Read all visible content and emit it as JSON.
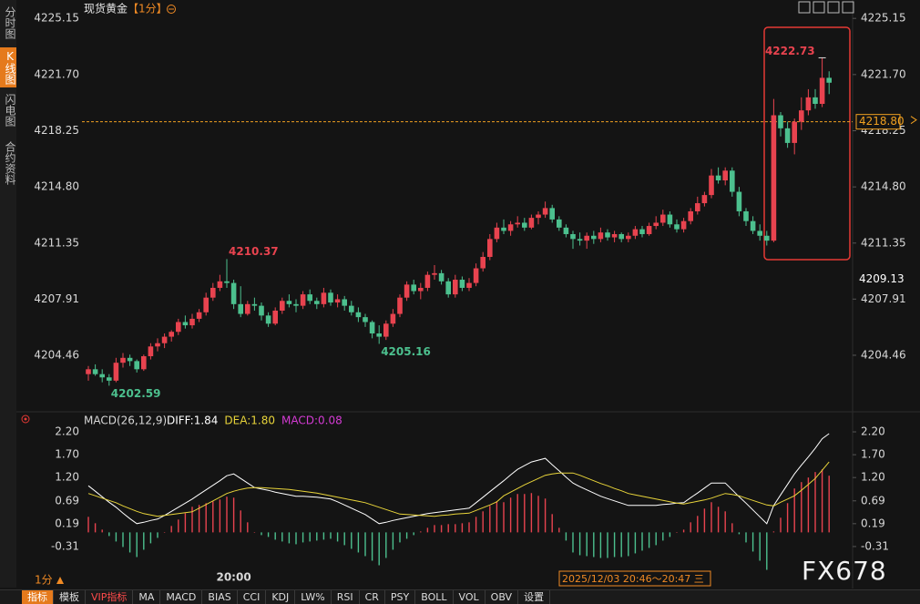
{
  "sidebar": {
    "tabs": [
      "分时图",
      "K线图",
      "闪电图",
      "合约资料"
    ]
  },
  "header": {
    "title": "现货黄金",
    "interval": "【1分】"
  },
  "chart_data": [
    {
      "type": "candlestick",
      "colors": {
        "up": "#e8434f",
        "down": "#4cc08e"
      },
      "ylim": [
        4201.1,
        4226.0
      ],
      "yticks": [
        4225.15,
        {
          "value": 4221.7,
          "label": "4221.70"
        },
        4218.25,
        {
          "value": 4214.8,
          "label": "4214.80"
        },
        4211.35,
        4207.91,
        4204.46
      ],
      "price_line": {
        "value": 4218.8,
        "label": "4218.80",
        "color": "#f0a020"
      },
      "cursor_price": 4209.13,
      "categories": [
        null,
        null,
        null,
        null,
        null,
        null,
        null,
        null,
        null,
        null,
        null,
        null,
        null,
        null,
        null,
        null,
        null,
        null,
        null,
        null,
        null,
        "20:00",
        null,
        null,
        null,
        null,
        null,
        null,
        null,
        null,
        null,
        null,
        null,
        null,
        null,
        null,
        null,
        null,
        null,
        null,
        null,
        null,
        null,
        null,
        null,
        null,
        null,
        null,
        null,
        null,
        null,
        null,
        null,
        null,
        null,
        null,
        null,
        null,
        null,
        null,
        null,
        null,
        null,
        null,
        null,
        null,
        null,
        null,
        null,
        null,
        null,
        null,
        null,
        null,
        null,
        null,
        null,
        null,
        null,
        null,
        null,
        null,
        null,
        null,
        null,
        null,
        null,
        null,
        null,
        null,
        null,
        null,
        null,
        null,
        null,
        null,
        null,
        null,
        null,
        null,
        null,
        null,
        null,
        null,
        null,
        null,
        null,
        null
      ],
      "candles": [
        [
          4203.3,
          4203.8,
          4202.9,
          4203.6
        ],
        [
          4203.6,
          4203.9,
          4203.2,
          4203.3
        ],
        [
          4203.3,
          4203.6,
          4202.8,
          4203.1
        ],
        [
          4203.1,
          4203.3,
          4202.59,
          4202.9
        ],
        [
          4202.9,
          4204.3,
          4202.8,
          4204.0
        ],
        [
          4204.0,
          4204.6,
          4203.7,
          4204.3
        ],
        [
          4204.3,
          4204.5,
          4203.8,
          4204.1
        ],
        [
          4204.1,
          4204.2,
          4203.4,
          4203.6
        ],
        [
          4203.6,
          4204.5,
          4203.5,
          4204.4
        ],
        [
          4204.4,
          4205.2,
          4204.2,
          4205.0
        ],
        [
          4205.0,
          4205.5,
          4204.7,
          4205.2
        ],
        [
          4205.2,
          4205.8,
          4204.9,
          4205.6
        ],
        [
          4205.6,
          4206.0,
          4205.3,
          4205.9
        ],
        [
          4205.9,
          4206.7,
          4205.7,
          4206.5
        ],
        [
          4206.5,
          4206.9,
          4206.1,
          4206.3
        ],
        [
          4206.3,
          4207.0,
          4206.1,
          4206.7
        ],
        [
          4206.7,
          4207.3,
          4206.5,
          4207.1
        ],
        [
          4207.1,
          4208.3,
          4206.9,
          4208.0
        ],
        [
          4208.0,
          4208.9,
          4207.8,
          4208.6
        ],
        [
          4208.6,
          4209.4,
          4208.4,
          4209.0
        ],
        [
          4209.0,
          4210.37,
          4208.6,
          4208.9
        ],
        [
          4208.9,
          4209.1,
          4207.3,
          4207.6
        ],
        [
          4207.6,
          4208.7,
          4206.8,
          4207.0
        ],
        [
          4207.0,
          4207.8,
          4206.9,
          4207.6
        ],
        [
          4207.6,
          4208.0,
          4207.2,
          4207.5
        ],
        [
          4207.5,
          4207.7,
          4206.6,
          4206.9
        ],
        [
          4206.9,
          4207.1,
          4206.2,
          4206.4
        ],
        [
          4206.4,
          4207.4,
          4206.3,
          4207.2
        ],
        [
          4207.2,
          4208.0,
          4207.0,
          4207.8
        ],
        [
          4207.8,
          4208.2,
          4207.4,
          4207.6
        ],
        [
          4207.6,
          4207.9,
          4207.1,
          4207.5
        ],
        [
          4207.5,
          4208.4,
          4207.3,
          4208.2
        ],
        [
          4208.2,
          4208.5,
          4207.6,
          4207.8
        ],
        [
          4207.8,
          4208.0,
          4207.3,
          4207.6
        ],
        [
          4207.6,
          4208.6,
          4207.4,
          4208.3
        ],
        [
          4208.3,
          4208.5,
          4207.5,
          4207.7
        ],
        [
          4207.7,
          4208.2,
          4207.4,
          4207.9
        ],
        [
          4207.9,
          4208.1,
          4207.2,
          4207.5
        ],
        [
          4207.5,
          4207.8,
          4206.9,
          4207.1
        ],
        [
          4207.1,
          4207.4,
          4206.5,
          4206.8
        ],
        [
          4206.8,
          4207.0,
          4206.2,
          4206.5
        ],
        [
          4206.5,
          4206.6,
          4205.5,
          4205.8
        ],
        [
          4205.8,
          4206.3,
          4205.16,
          4205.6
        ],
        [
          4205.6,
          4206.6,
          4205.4,
          4206.4
        ],
        [
          4206.4,
          4207.3,
          4206.2,
          4207.0
        ],
        [
          4207.0,
          4208.2,
          4206.8,
          4208.0
        ],
        [
          4208.0,
          4209.0,
          4207.8,
          4208.8
        ],
        [
          4208.8,
          4209.1,
          4208.2,
          4208.4
        ],
        [
          4208.4,
          4208.9,
          4207.9,
          4208.6
        ],
        [
          4208.6,
          4209.6,
          4208.4,
          4209.4
        ],
        [
          4209.4,
          4210.0,
          4209.1,
          4209.5
        ],
        [
          4209.5,
          4209.7,
          4208.8,
          4209.0
        ],
        [
          4209.0,
          4209.2,
          4208.0,
          4208.2
        ],
        [
          4208.2,
          4209.4,
          4208.0,
          4209.1
        ],
        [
          4209.1,
          4209.3,
          4208.4,
          4208.6
        ],
        [
          4208.6,
          4209.2,
          4208.4,
          4208.9
        ],
        [
          4208.9,
          4210.1,
          4208.7,
          4209.8
        ],
        [
          4209.8,
          4210.8,
          4209.6,
          4210.5
        ],
        [
          4210.5,
          4211.9,
          4210.3,
          4211.6
        ],
        [
          4211.6,
          4212.6,
          4211.4,
          4212.3
        ],
        [
          4212.3,
          4212.8,
          4211.9,
          4212.1
        ],
        [
          4212.1,
          4212.7,
          4211.8,
          4212.5
        ],
        [
          4212.5,
          4213.0,
          4212.3,
          4212.6
        ],
        [
          4212.6,
          4212.9,
          4212.1,
          4212.3
        ],
        [
          4212.3,
          4213.1,
          4212.2,
          4212.9
        ],
        [
          4212.9,
          4213.3,
          4212.5,
          4213.1
        ],
        [
          4213.1,
          4213.9,
          4212.9,
          4213.5
        ],
        [
          4213.5,
          4213.7,
          4212.6,
          4212.8
        ],
        [
          4212.8,
          4213.0,
          4212.1,
          4212.3
        ],
        [
          4212.3,
          4212.5,
          4211.7,
          4211.9
        ],
        [
          4211.9,
          4212.1,
          4211.0,
          4211.6
        ],
        [
          4211.6,
          4212.0,
          4211.2,
          4211.5
        ],
        [
          4211.5,
          4212.0,
          4211.0,
          4211.8
        ],
        [
          4211.8,
          4212.1,
          4211.3,
          4211.6
        ],
        [
          4211.6,
          4212.3,
          4211.4,
          4212.0
        ],
        [
          4212.0,
          4212.2,
          4211.5,
          4211.7
        ],
        [
          4211.7,
          4212.1,
          4211.4,
          4211.9
        ],
        [
          4211.9,
          4212.0,
          4211.4,
          4211.6
        ],
        [
          4211.6,
          4212.0,
          4211.4,
          4211.8
        ],
        [
          4211.8,
          4212.4,
          4211.6,
          4212.2
        ],
        [
          4212.2,
          4212.4,
          4211.7,
          4211.9
        ],
        [
          4211.9,
          4212.6,
          4211.8,
          4212.4
        ],
        [
          4212.4,
          4213.0,
          4212.2,
          4212.6
        ],
        [
          4212.6,
          4213.4,
          4212.4,
          4213.1
        ],
        [
          4213.1,
          4213.3,
          4212.3,
          4212.5
        ],
        [
          4212.5,
          4212.8,
          4212.0,
          4212.2
        ],
        [
          4212.2,
          4212.9,
          4212.0,
          4212.7
        ],
        [
          4212.7,
          4213.5,
          4212.5,
          4213.3
        ],
        [
          4213.3,
          4214.2,
          4213.1,
          4213.8
        ],
        [
          4213.8,
          4214.5,
          4213.6,
          4214.3
        ],
        [
          4214.3,
          4215.9,
          4214.1,
          4215.5
        ],
        [
          4215.5,
          4216.0,
          4215.0,
          4215.2
        ],
        [
          4215.2,
          4216.0,
          4214.9,
          4215.8
        ],
        [
          4215.8,
          4216.0,
          4214.2,
          4214.5
        ],
        [
          4214.5,
          4214.8,
          4213.0,
          4213.3
        ],
        [
          4213.3,
          4213.5,
          4212.4,
          4212.7
        ],
        [
          4212.7,
          4213.0,
          4211.9,
          4212.1
        ],
        [
          4212.1,
          4212.5,
          4211.5,
          4211.8
        ],
        [
          4211.8,
          4212.1,
          4211.2,
          4211.5
        ],
        [
          4211.5,
          4220.2,
          4211.4,
          4219.2
        ],
        [
          4219.2,
          4219.4,
          4217.9,
          4218.4
        ],
        [
          4218.4,
          4218.8,
          4217.2,
          4217.5
        ],
        [
          4217.5,
          4219.0,
          4216.8,
          4218.8
        ],
        [
          4218.8,
          4220.3,
          4218.3,
          4219.5
        ],
        [
          4219.5,
          4220.8,
          4219.2,
          4220.3
        ],
        [
          4220.3,
          4220.8,
          4219.6,
          4219.9
        ],
        [
          4219.9,
          4222.73,
          4219.7,
          4221.5
        ],
        [
          4221.5,
          4221.9,
          4220.5,
          4221.2
        ]
      ]
    },
    {
      "type": "macd",
      "title": "MACD(26,12,9)",
      "ylim": [
        -0.81,
        2.38
      ],
      "yticks": [
        {
          "value": 2.2,
          "label": "2.20"
        },
        {
          "value": 1.7,
          "label": "1.70"
        },
        {
          "value": 1.2,
          "label": "1.20"
        },
        0.69,
        0.19,
        -0.31
      ],
      "series": [
        {
          "name": "DIFF:1.84",
          "color": "#ffffff",
          "values": [
            1.02,
            0.9,
            0.78,
            0.66,
            0.55,
            0.42,
            0.3,
            0.19,
            0.22,
            0.26,
            0.29,
            0.37,
            0.46,
            0.55,
            0.64,
            0.73,
            0.83,
            0.93,
            1.03,
            1.13,
            1.24,
            1.28,
            1.18,
            1.08,
            0.98,
            0.95,
            0.92,
            0.88,
            0.85,
            0.82,
            0.79,
            0.79,
            0.78,
            0.77,
            0.75,
            0.73,
            0.67,
            0.6,
            0.53,
            0.46,
            0.39,
            0.29,
            0.19,
            0.22,
            0.26,
            0.29,
            0.32,
            0.35,
            0.38,
            0.41,
            0.43,
            0.45,
            0.47,
            0.49,
            0.51,
            0.53,
            0.65,
            0.77,
            0.89,
            1.01,
            1.13,
            1.26,
            1.38,
            1.46,
            1.54,
            1.58,
            1.62,
            1.48,
            1.35,
            1.21,
            1.08,
            1.0,
            0.93,
            0.86,
            0.79,
            0.74,
            0.69,
            0.64,
            0.59,
            0.59,
            0.59,
            0.59,
            0.59,
            0.61,
            0.62,
            0.64,
            0.65,
            0.76,
            0.86,
            0.97,
            1.08,
            1.08,
            1.08,
            0.93,
            0.78,
            0.64,
            0.49,
            0.34,
            0.19,
            0.59,
            0.82,
            1.05,
            1.28,
            1.47,
            1.65,
            1.84,
            2.05,
            2.16
          ]
        },
        {
          "name": "DEA:1.80",
          "color": "#e8d43a",
          "values": [
            0.85,
            0.8,
            0.75,
            0.7,
            0.65,
            0.58,
            0.52,
            0.46,
            0.41,
            0.38,
            0.35,
            0.37,
            0.39,
            0.41,
            0.43,
            0.45,
            0.53,
            0.61,
            0.69,
            0.77,
            0.85,
            0.9,
            0.94,
            0.97,
            0.98,
            0.98,
            0.97,
            0.96,
            0.95,
            0.94,
            0.92,
            0.9,
            0.88,
            0.86,
            0.83,
            0.8,
            0.77,
            0.74,
            0.71,
            0.68,
            0.65,
            0.6,
            0.55,
            0.5,
            0.45,
            0.4,
            0.39,
            0.38,
            0.37,
            0.36,
            0.35,
            0.37,
            0.38,
            0.4,
            0.41,
            0.42,
            0.48,
            0.54,
            0.6,
            0.67,
            0.8,
            0.88,
            0.96,
            1.04,
            1.11,
            1.18,
            1.25,
            1.28,
            1.3,
            1.3,
            1.3,
            1.25,
            1.19,
            1.13,
            1.07,
            1.02,
            0.96,
            0.91,
            0.85,
            0.82,
            0.79,
            0.76,
            0.73,
            0.7,
            0.67,
            0.64,
            0.62,
            0.65,
            0.68,
            0.71,
            0.75,
            0.8,
            0.85,
            0.83,
            0.8,
            0.75,
            0.7,
            0.65,
            0.6,
            0.58,
            0.66,
            0.73,
            0.8,
            0.92,
            1.05,
            1.18,
            1.36,
            1.54
          ]
        },
        {
          "name": "MACD:0.08",
          "color": "#d43bd4",
          "type": "bar",
          "up_color": "#e8434f",
          "down_color": "#4cc08e",
          "values": [
            0.34,
            0.2,
            0.06,
            -0.08,
            -0.2,
            -0.32,
            -0.44,
            -0.54,
            -0.38,
            -0.24,
            -0.12,
            0,
            0.14,
            0.28,
            0.42,
            0.56,
            0.6,
            0.64,
            0.68,
            0.72,
            0.78,
            0.76,
            0.48,
            0.22,
            0,
            -0.06,
            -0.1,
            -0.16,
            -0.2,
            -0.24,
            -0.26,
            -0.22,
            -0.2,
            -0.18,
            -0.16,
            -0.14,
            -0.2,
            -0.28,
            -0.36,
            -0.44,
            -0.52,
            -0.62,
            -0.72,
            -0.56,
            -0.38,
            -0.22,
            -0.14,
            -0.06,
            0.02,
            0.1,
            0.16,
            0.16,
            0.18,
            0.18,
            0.2,
            0.22,
            0.34,
            0.46,
            0.58,
            0.68,
            0.66,
            0.76,
            0.84,
            0.84,
            0.86,
            0.8,
            0.74,
            0.4,
            0.1,
            -0.18,
            -0.44,
            -0.5,
            -0.52,
            -0.54,
            -0.56,
            -0.56,
            -0.54,
            -0.54,
            -0.52,
            -0.46,
            -0.4,
            -0.34,
            -0.28,
            -0.18,
            -0.1,
            0,
            0.06,
            0.22,
            0.36,
            0.52,
            0.66,
            0.56,
            0.46,
            0.2,
            -0.04,
            -0.22,
            -0.42,
            -0.62,
            -0.82,
            0.02,
            0.32,
            0.64,
            0.96,
            1.1,
            1.2,
            1.32,
            1.38,
            1.24
          ]
        }
      ]
    }
  ],
  "footer": {
    "interval": "1分",
    "date_range": "2025/12/03 20:46～20:47 三",
    "watermark": "FX678"
  },
  "toolbar": [
    "指标",
    "模板",
    "VIP指标",
    "MA",
    "MACD",
    "BIAS",
    "CCI",
    "KDJ",
    "LW%",
    "RSI",
    "CR",
    "PSY",
    "BOLL",
    "VOL",
    "OBV",
    "设置"
  ]
}
